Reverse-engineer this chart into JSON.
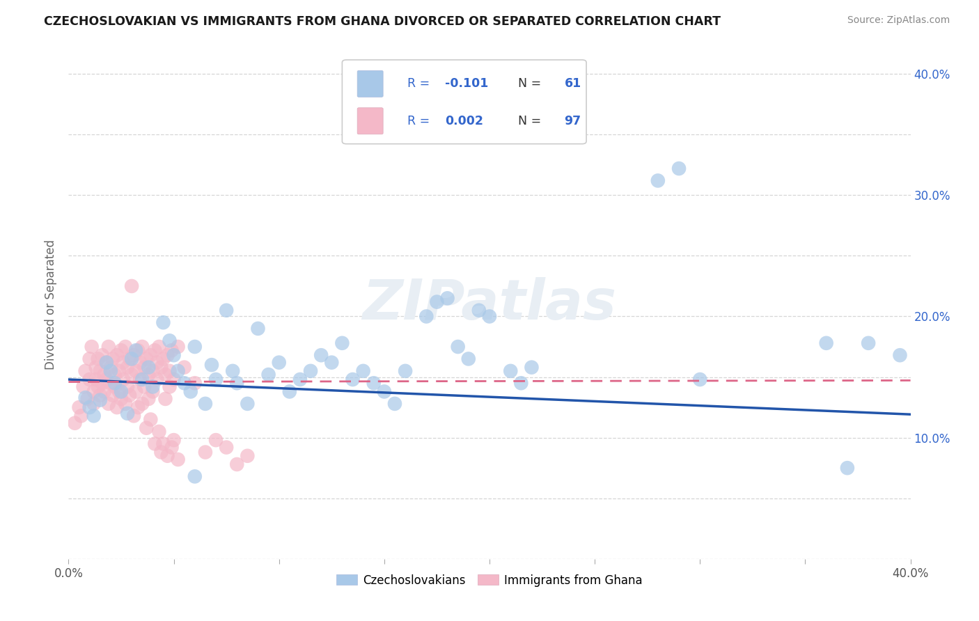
{
  "title": "CZECHOSLOVAKIAN VS IMMIGRANTS FROM GHANA DIVORCED OR SEPARATED CORRELATION CHART",
  "source": "Source: ZipAtlas.com",
  "ylabel": "Divorced or Separated",
  "xlim": [
    0.0,
    0.4
  ],
  "ylim": [
    0.0,
    0.42
  ],
  "blue_color": "#a8c8e8",
  "pink_color": "#f4b8c8",
  "blue_line_color": "#2255aa",
  "pink_line_color": "#dd6688",
  "background_color": "#ffffff",
  "watermark_text": "ZIPatlas",
  "watermark_color": "#e8eef4",
  "blue_intercept": 0.148,
  "blue_slope": -0.072,
  "pink_intercept": 0.146,
  "pink_slope": 0.003,
  "grid_color": "#cccccc",
  "legend_R_color": "#3366cc",
  "legend_N_color": "#333333",
  "right_tick_color": "#3366cc",
  "blue_scatter": [
    [
      0.008,
      0.133
    ],
    [
      0.01,
      0.125
    ],
    [
      0.012,
      0.118
    ],
    [
      0.015,
      0.131
    ],
    [
      0.018,
      0.162
    ],
    [
      0.02,
      0.155
    ],
    [
      0.022,
      0.145
    ],
    [
      0.025,
      0.138
    ],
    [
      0.028,
      0.12
    ],
    [
      0.03,
      0.165
    ],
    [
      0.032,
      0.172
    ],
    [
      0.035,
      0.148
    ],
    [
      0.038,
      0.158
    ],
    [
      0.04,
      0.142
    ],
    [
      0.045,
      0.195
    ],
    [
      0.048,
      0.18
    ],
    [
      0.05,
      0.168
    ],
    [
      0.052,
      0.155
    ],
    [
      0.055,
      0.145
    ],
    [
      0.058,
      0.138
    ],
    [
      0.06,
      0.175
    ],
    [
      0.065,
      0.128
    ],
    [
      0.068,
      0.16
    ],
    [
      0.07,
      0.148
    ],
    [
      0.075,
      0.205
    ],
    [
      0.078,
      0.155
    ],
    [
      0.08,
      0.145
    ],
    [
      0.085,
      0.128
    ],
    [
      0.09,
      0.19
    ],
    [
      0.095,
      0.152
    ],
    [
      0.1,
      0.162
    ],
    [
      0.105,
      0.138
    ],
    [
      0.11,
      0.148
    ],
    [
      0.115,
      0.155
    ],
    [
      0.12,
      0.168
    ],
    [
      0.125,
      0.162
    ],
    [
      0.13,
      0.178
    ],
    [
      0.135,
      0.148
    ],
    [
      0.14,
      0.155
    ],
    [
      0.145,
      0.145
    ],
    [
      0.15,
      0.138
    ],
    [
      0.155,
      0.128
    ],
    [
      0.16,
      0.155
    ],
    [
      0.17,
      0.2
    ],
    [
      0.175,
      0.212
    ],
    [
      0.18,
      0.215
    ],
    [
      0.185,
      0.175
    ],
    [
      0.19,
      0.165
    ],
    [
      0.195,
      0.205
    ],
    [
      0.2,
      0.2
    ],
    [
      0.21,
      0.155
    ],
    [
      0.215,
      0.145
    ],
    [
      0.22,
      0.158
    ],
    [
      0.28,
      0.312
    ],
    [
      0.29,
      0.322
    ],
    [
      0.3,
      0.148
    ],
    [
      0.36,
      0.178
    ],
    [
      0.37,
      0.075
    ],
    [
      0.38,
      0.178
    ],
    [
      0.395,
      0.168
    ],
    [
      0.06,
      0.068
    ]
  ],
  "pink_scatter": [
    [
      0.003,
      0.112
    ],
    [
      0.005,
      0.125
    ],
    [
      0.006,
      0.118
    ],
    [
      0.007,
      0.142
    ],
    [
      0.008,
      0.155
    ],
    [
      0.009,
      0.132
    ],
    [
      0.01,
      0.148
    ],
    [
      0.01,
      0.165
    ],
    [
      0.011,
      0.175
    ],
    [
      0.012,
      0.138
    ],
    [
      0.012,
      0.128
    ],
    [
      0.013,
      0.158
    ],
    [
      0.013,
      0.148
    ],
    [
      0.014,
      0.165
    ],
    [
      0.014,
      0.142
    ],
    [
      0.015,
      0.155
    ],
    [
      0.015,
      0.135
    ],
    [
      0.016,
      0.145
    ],
    [
      0.016,
      0.168
    ],
    [
      0.017,
      0.152
    ],
    [
      0.017,
      0.138
    ],
    [
      0.018,
      0.162
    ],
    [
      0.018,
      0.148
    ],
    [
      0.019,
      0.175
    ],
    [
      0.019,
      0.128
    ],
    [
      0.02,
      0.158
    ],
    [
      0.02,
      0.145
    ],
    [
      0.021,
      0.165
    ],
    [
      0.021,
      0.135
    ],
    [
      0.022,
      0.152
    ],
    [
      0.022,
      0.142
    ],
    [
      0.023,
      0.168
    ],
    [
      0.023,
      0.125
    ],
    [
      0.024,
      0.155
    ],
    [
      0.024,
      0.138
    ],
    [
      0.025,
      0.172
    ],
    [
      0.025,
      0.132
    ],
    [
      0.026,
      0.148
    ],
    [
      0.026,
      0.162
    ],
    [
      0.027,
      0.175
    ],
    [
      0.027,
      0.128
    ],
    [
      0.028,
      0.158
    ],
    [
      0.028,
      0.142
    ],
    [
      0.029,
      0.165
    ],
    [
      0.029,
      0.135
    ],
    [
      0.03,
      0.152
    ],
    [
      0.03,
      0.225
    ],
    [
      0.031,
      0.168
    ],
    [
      0.031,
      0.118
    ],
    [
      0.032,
      0.155
    ],
    [
      0.032,
      0.138
    ],
    [
      0.033,
      0.172
    ],
    [
      0.033,
      0.125
    ],
    [
      0.034,
      0.148
    ],
    [
      0.034,
      0.162
    ],
    [
      0.035,
      0.175
    ],
    [
      0.035,
      0.128
    ],
    [
      0.036,
      0.158
    ],
    [
      0.036,
      0.142
    ],
    [
      0.037,
      0.165
    ],
    [
      0.037,
      0.108
    ],
    [
      0.038,
      0.152
    ],
    [
      0.038,
      0.132
    ],
    [
      0.039,
      0.168
    ],
    [
      0.039,
      0.115
    ],
    [
      0.04,
      0.155
    ],
    [
      0.04,
      0.138
    ],
    [
      0.041,
      0.172
    ],
    [
      0.041,
      0.095
    ],
    [
      0.042,
      0.148
    ],
    [
      0.042,
      0.162
    ],
    [
      0.043,
      0.175
    ],
    [
      0.043,
      0.105
    ],
    [
      0.044,
      0.158
    ],
    [
      0.044,
      0.088
    ],
    [
      0.045,
      0.165
    ],
    [
      0.045,
      0.095
    ],
    [
      0.046,
      0.152
    ],
    [
      0.046,
      0.132
    ],
    [
      0.047,
      0.168
    ],
    [
      0.047,
      0.085
    ],
    [
      0.048,
      0.155
    ],
    [
      0.048,
      0.142
    ],
    [
      0.049,
      0.172
    ],
    [
      0.049,
      0.092
    ],
    [
      0.05,
      0.148
    ],
    [
      0.05,
      0.098
    ],
    [
      0.052,
      0.175
    ],
    [
      0.052,
      0.082
    ],
    [
      0.055,
      0.158
    ],
    [
      0.06,
      0.145
    ],
    [
      0.065,
      0.088
    ],
    [
      0.07,
      0.098
    ],
    [
      0.075,
      0.092
    ],
    [
      0.08,
      0.078
    ],
    [
      0.085,
      0.085
    ]
  ]
}
